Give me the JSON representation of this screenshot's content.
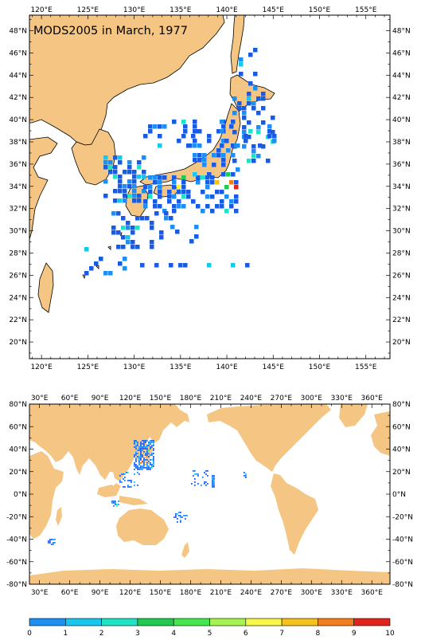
{
  "title": "MODS2005 in March, 1977",
  "colors": {
    "land": "#f5c583",
    "ocean": "#ffffff",
    "frame": "#000000"
  },
  "regional_map": {
    "lon_range": [
      118.7,
      157.6
    ],
    "lat_range": [
      18.5,
      49.4
    ],
    "x_ticks": [
      "120°E",
      "125°E",
      "130°E",
      "135°E",
      "140°E",
      "145°E",
      "150°E",
      "155°E"
    ],
    "y_ticks": [
      "48°N",
      "46°N",
      "44°N",
      "42°N",
      "40°N",
      "38°N",
      "36°N",
      "34°N",
      "32°N",
      "30°N",
      "28°N",
      "26°N",
      "24°N",
      "22°N",
      "20°N"
    ]
  },
  "global_map": {
    "lon_range": [
      20,
      378
    ],
    "lat_range": [
      -80,
      80
    ],
    "x_ticks": [
      "30°E",
      "60°E",
      "90°E",
      "120°E",
      "150°E",
      "180°E",
      "210°E",
      "240°E",
      "270°E",
      "300°E",
      "330°E",
      "360°E"
    ],
    "y_ticks": [
      "80°N",
      "60°N",
      "40°N",
      "20°N",
      "0°N",
      "-20°N",
      "-40°N",
      "-60°N",
      "-80°N"
    ]
  },
  "colorbar": {
    "labels": [
      "0",
      "1",
      "2",
      "3",
      "4",
      "5",
      "6",
      "7",
      "8",
      "9",
      "10"
    ],
    "colors": [
      "#1a5be0",
      "#1f8ef2",
      "#19c6ee",
      "#1ee3c5",
      "#22c84f",
      "#44e84e",
      "#a6f250",
      "#f7f74a",
      "#f5c11c",
      "#f27d1c",
      "#e2241e"
    ]
  }
}
